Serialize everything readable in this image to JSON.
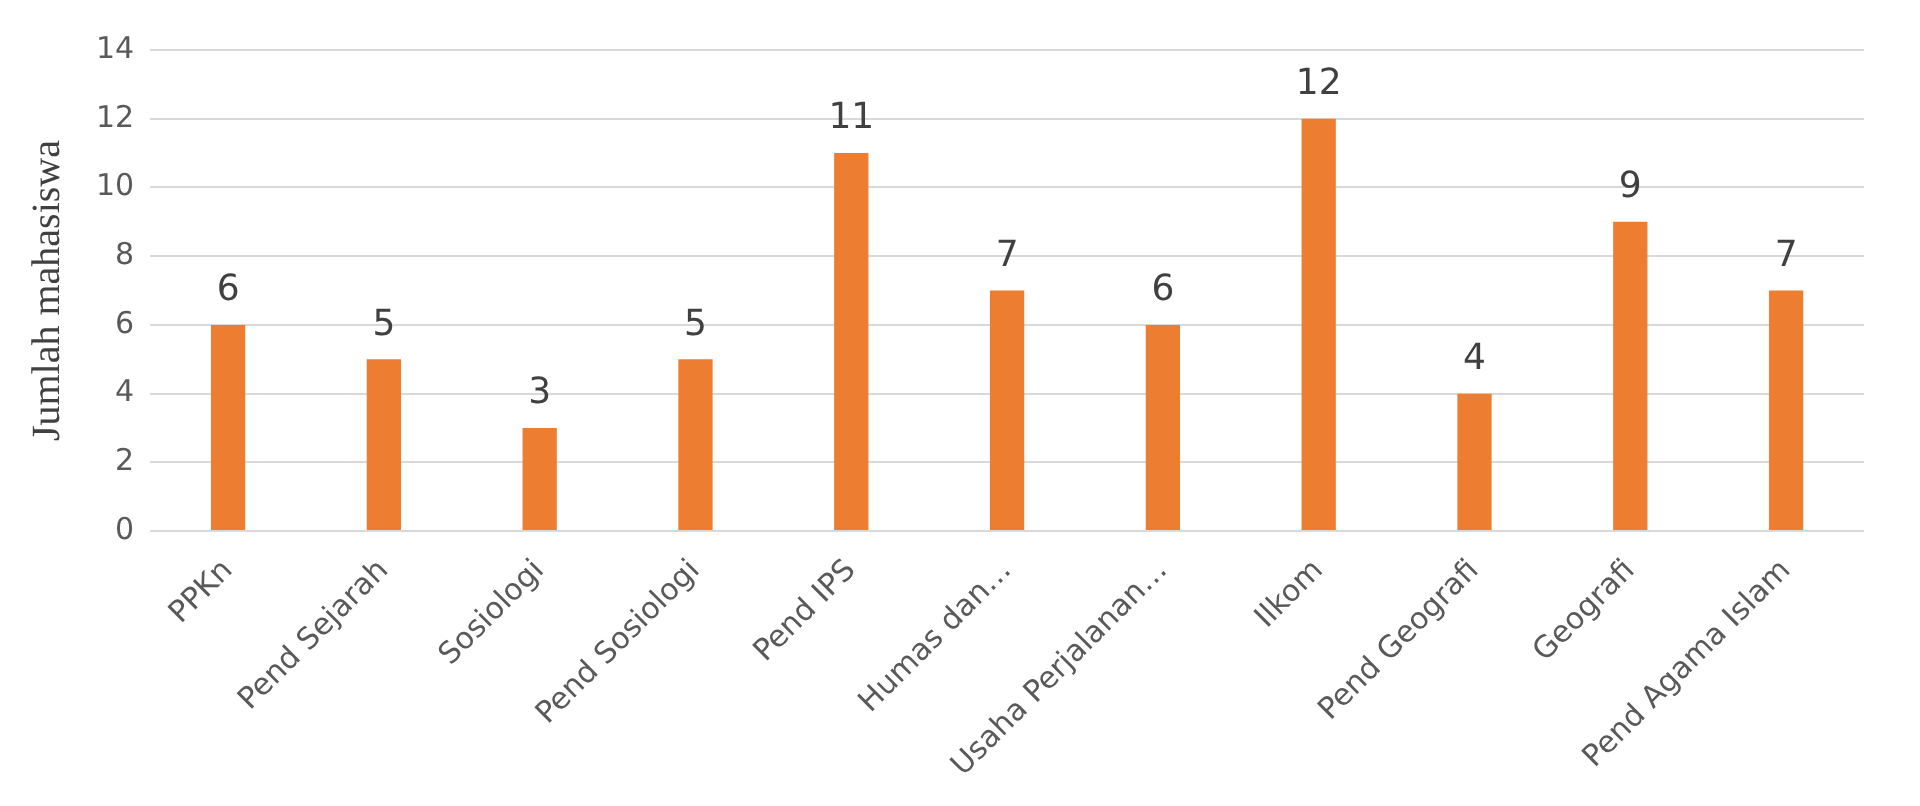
{
  "chart_data": {
    "type": "bar",
    "ylabel": "Jumlah mahasiswa",
    "categories": [
      "PPKn",
      "Pend Sejarah",
      "Sosiologi",
      "Pend Sosiologi",
      "Pend IPS",
      "Humas dan…",
      "Usaha Perjalanan…",
      "Ilkom",
      "Pend Geografi",
      "Geografi",
      "Pend Agama Islam"
    ],
    "values": [
      6,
      5,
      3,
      5,
      11,
      7,
      6,
      12,
      4,
      9,
      7
    ],
    "color": "#ed7d31",
    "ylim": [
      0,
      14
    ],
    "yticks": [
      0,
      2,
      4,
      6,
      8,
      10,
      12,
      14
    ],
    "grid": "y",
    "data_labels": true,
    "legend": false
  }
}
